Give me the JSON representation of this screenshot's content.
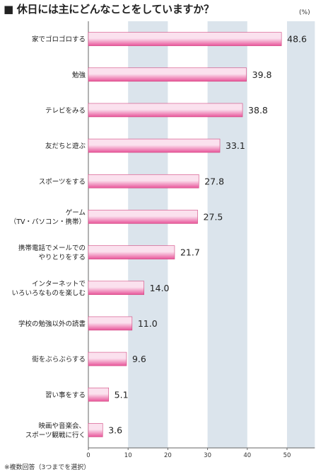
{
  "title": "■ 休日には主にどんなことをしていますか？",
  "unit": "(%)",
  "footnote": "※複数回答（3つまでを選択）",
  "colors": {
    "bar": "#e8559a",
    "bar_highlight": "#fbe1ee",
    "band": "#dbe4ec",
    "text": "#222222"
  },
  "chart_data": {
    "type": "bar",
    "orientation": "horizontal",
    "title": "休日には主にどんなことをしていますか？",
    "unit": "%",
    "categories": [
      [
        "家でゴロゴロする"
      ],
      [
        "勉強"
      ],
      [
        "テレビをみる"
      ],
      [
        "友だちと遊ぶ"
      ],
      [
        "スポーツをする"
      ],
      [
        "ゲーム",
        "（TV・パソコン・携帯）"
      ],
      [
        "携帯電話でメールでの",
        "やりとりをする"
      ],
      [
        "インターネットで",
        "いろいろなものを楽しむ"
      ],
      [
        "学校の勉強以外の読書"
      ],
      [
        "街をぶらぶらする"
      ],
      [
        "習い事をする"
      ],
      [
        "映画や音楽会、",
        "スポーツ観戦に行く"
      ]
    ],
    "values": [
      48.6,
      39.8,
      38.8,
      33.1,
      27.8,
      27.5,
      21.7,
      14.0,
      11.0,
      9.6,
      5.1,
      3.6
    ],
    "value_labels": [
      "48.6",
      "39.8",
      "38.8",
      "33.1",
      "27.8",
      "27.5",
      "21.7",
      "14.0",
      "11.0",
      "9.6",
      "5.1",
      "3.6"
    ],
    "xlim": [
      0,
      57
    ],
    "xticks": [
      0,
      10,
      20,
      30,
      40,
      50
    ],
    "grid": "alternating vertical bands"
  }
}
